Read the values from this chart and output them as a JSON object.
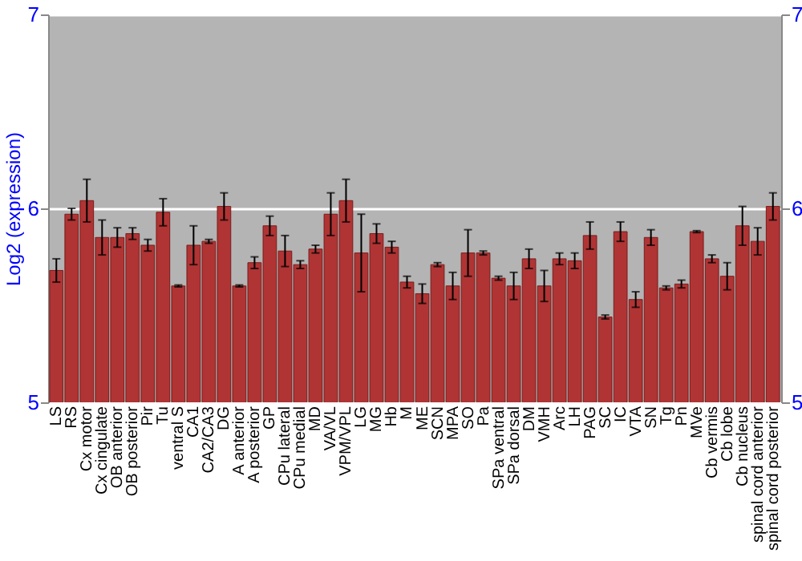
{
  "chart_data": {
    "type": "bar",
    "ylabel": "Log2 (expression)",
    "categories": [
      "LS",
      "RS",
      "Cx motor",
      "Cx cingulate",
      "OB anterior",
      "OB posterior",
      "Pir",
      "Tu",
      "ventral S",
      "CA1",
      "CA2/CA3",
      "DG",
      "A anterior",
      "A posterior",
      "GP",
      "CPu lateral",
      "CPu medial",
      "MD",
      "VA/VL",
      "VPM/VPL",
      "LG",
      "MG",
      "Hb",
      "M",
      "ME",
      "SCN",
      "MPA",
      "SO",
      "Pa",
      "SPa ventral",
      "SPa dorsal",
      "DM",
      "VMH",
      "Arc",
      "LH",
      "PAG",
      "SC",
      "IC",
      "VTA",
      "SN",
      "Tg",
      "Pn",
      "MVe",
      "Cb vermis",
      "Cb lobe",
      "Cb nucleus",
      "spinal cord anterior",
      "spinal cord posterior"
    ],
    "values": [
      5.68,
      5.97,
      6.04,
      5.85,
      5.85,
      5.87,
      5.81,
      5.98,
      5.6,
      5.81,
      5.83,
      6.01,
      5.6,
      5.72,
      5.91,
      5.78,
      5.71,
      5.79,
      5.97,
      6.04,
      5.77,
      5.87,
      5.8,
      5.62,
      5.56,
      5.71,
      5.6,
      5.77,
      5.77,
      5.64,
      5.6,
      5.74,
      5.6,
      5.74,
      5.73,
      5.86,
      5.44,
      5.88,
      5.53,
      5.85,
      5.59,
      5.61,
      5.88,
      5.74,
      5.65,
      5.91,
      5.83,
      6.01
    ],
    "errors": [
      0.06,
      0.03,
      0.11,
      0.09,
      0.05,
      0.03,
      0.03,
      0.07,
      0.005,
      0.1,
      0.01,
      0.07,
      0.005,
      0.03,
      0.05,
      0.08,
      0.02,
      0.02,
      0.11,
      0.11,
      0.2,
      0.05,
      0.03,
      0.03,
      0.05,
      0.01,
      0.07,
      0.12,
      0.01,
      0.01,
      0.07,
      0.05,
      0.08,
      0.03,
      0.04,
      0.07,
      0.01,
      0.05,
      0.04,
      0.04,
      0.01,
      0.02,
      0.005,
      0.02,
      0.07,
      0.1,
      0.07,
      0.07
    ],
    "color": "#b03434",
    "ylim": [
      5,
      7
    ],
    "yticks": [
      5,
      6,
      7
    ],
    "y2lim": [
      5,
      7
    ],
    "y2ticks": [
      5,
      6,
      7
    ],
    "grid": "y"
  }
}
